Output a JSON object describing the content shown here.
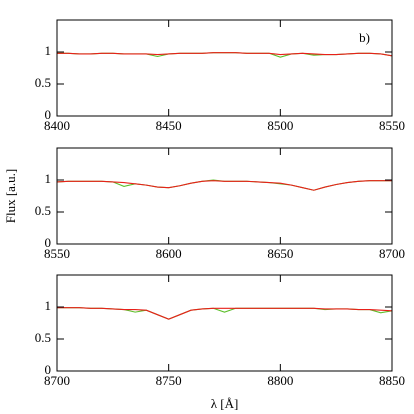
{
  "chart_data": [
    {
      "type": "line",
      "annotation": "b)",
      "x": [
        8400,
        8405,
        8410,
        8415,
        8420,
        8425,
        8430,
        8435,
        8440,
        8445,
        8450,
        8455,
        8460,
        8465,
        8470,
        8475,
        8480,
        8485,
        8490,
        8495,
        8500,
        8505,
        8510,
        8515,
        8520,
        8525,
        8530,
        8535,
        8540,
        8545,
        8550
      ],
      "series": [
        {
          "color": "#5cbf2a",
          "values": [
            0.98,
            0.98,
            0.97,
            0.97,
            0.98,
            0.98,
            0.97,
            0.97,
            0.97,
            0.93,
            0.97,
            0.98,
            0.98,
            0.98,
            0.99,
            0.99,
            0.99,
            0.98,
            0.98,
            0.98,
            0.92,
            0.97,
            0.98,
            0.95,
            0.96,
            0.96,
            0.97,
            0.98,
            0.98,
            0.97,
            0.94
          ]
        },
        {
          "color": "#e8201a",
          "values": [
            0.98,
            0.98,
            0.97,
            0.97,
            0.98,
            0.98,
            0.97,
            0.97,
            0.97,
            0.96,
            0.97,
            0.98,
            0.98,
            0.98,
            0.99,
            0.99,
            0.99,
            0.98,
            0.98,
            0.98,
            0.96,
            0.97,
            0.98,
            0.97,
            0.96,
            0.96,
            0.97,
            0.98,
            0.98,
            0.97,
            0.94
          ]
        }
      ],
      "xlim": [
        8400,
        8550
      ],
      "xticks": [
        8400,
        8450,
        8500,
        8550
      ],
      "ylim": [
        0,
        1.5
      ],
      "yticks": [
        0,
        0.5,
        1
      ]
    },
    {
      "type": "line",
      "ylabel": "Flux [a.u.]",
      "x": [
        8550,
        8555,
        8560,
        8565,
        8570,
        8575,
        8580,
        8585,
        8590,
        8595,
        8600,
        8605,
        8610,
        8615,
        8620,
        8625,
        8630,
        8635,
        8640,
        8645,
        8650,
        8655,
        8660,
        8665,
        8670,
        8675,
        8680,
        8685,
        8690,
        8695,
        8700
      ],
      "series": [
        {
          "color": "#5cbf2a",
          "values": [
            0.97,
            0.98,
            0.98,
            0.98,
            0.98,
            0.97,
            0.9,
            0.94,
            0.92,
            0.89,
            0.88,
            0.91,
            0.95,
            0.98,
            1.0,
            0.98,
            0.98,
            0.98,
            0.97,
            0.96,
            0.94,
            0.92,
            0.88,
            0.84,
            0.89,
            0.93,
            0.96,
            0.98,
            0.99,
            0.99,
            0.99
          ]
        },
        {
          "color": "#e8201a",
          "values": [
            0.97,
            0.98,
            0.98,
            0.98,
            0.98,
            0.97,
            0.96,
            0.94,
            0.92,
            0.89,
            0.88,
            0.91,
            0.95,
            0.98,
            0.99,
            0.98,
            0.98,
            0.98,
            0.97,
            0.96,
            0.95,
            0.92,
            0.88,
            0.84,
            0.89,
            0.93,
            0.96,
            0.98,
            0.99,
            0.99,
            0.99
          ]
        }
      ],
      "xlim": [
        8550,
        8700
      ],
      "xticks": [
        8550,
        8600,
        8650,
        8700
      ],
      "ylim": [
        0,
        1.5
      ],
      "yticks": [
        0,
        0.5,
        1
      ]
    },
    {
      "type": "line",
      "xlabel": "λ [Å]",
      "x": [
        8700,
        8705,
        8710,
        8715,
        8720,
        8725,
        8730,
        8735,
        8740,
        8745,
        8750,
        8755,
        8760,
        8765,
        8770,
        8775,
        8780,
        8785,
        8790,
        8795,
        8800,
        8805,
        8810,
        8815,
        8820,
        8825,
        8830,
        8835,
        8840,
        8845,
        8850
      ],
      "series": [
        {
          "color": "#5cbf2a",
          "values": [
            0.99,
            0.99,
            0.99,
            0.98,
            0.98,
            0.97,
            0.96,
            0.92,
            0.95,
            0.88,
            0.81,
            0.88,
            0.95,
            0.97,
            0.98,
            0.92,
            0.98,
            0.98,
            0.98,
            0.98,
            0.98,
            0.98,
            0.98,
            0.98,
            0.96,
            0.97,
            0.97,
            0.96,
            0.96,
            0.91,
            0.94
          ]
        },
        {
          "color": "#e8201a",
          "values": [
            0.99,
            0.99,
            0.99,
            0.98,
            0.98,
            0.97,
            0.96,
            0.96,
            0.95,
            0.88,
            0.81,
            0.88,
            0.95,
            0.97,
            0.98,
            0.98,
            0.98,
            0.98,
            0.98,
            0.98,
            0.98,
            0.98,
            0.98,
            0.98,
            0.97,
            0.97,
            0.97,
            0.96,
            0.96,
            0.95,
            0.94
          ]
        }
      ],
      "xlim": [
        8700,
        8850
      ],
      "xticks": [
        8700,
        8750,
        8800,
        8850
      ],
      "ylim": [
        0,
        1.5
      ],
      "yticks": [
        0,
        0.5,
        1
      ]
    }
  ]
}
